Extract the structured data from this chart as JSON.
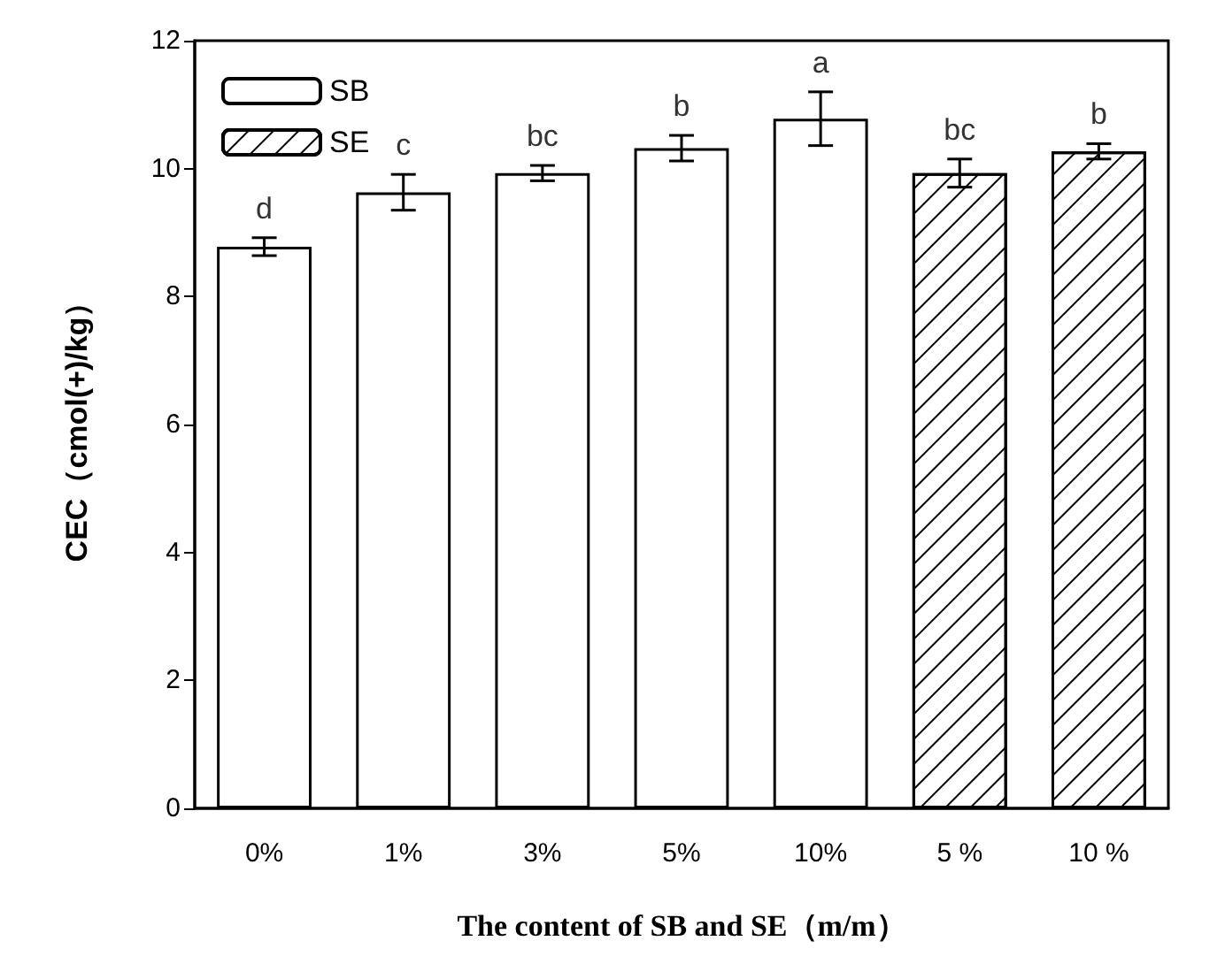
{
  "chart_data": {
    "type": "bar",
    "xlabel": "The content of SB and SE（m/m）",
    "ylabel": "CEC（cmol(+)/kg）",
    "categories": [
      "0%",
      "1%",
      "3%",
      "5%",
      "10%",
      "5 %",
      "10 %"
    ],
    "series": [
      {
        "name": "SB",
        "color": "#ffffff",
        "values": [
          8.78,
          9.63,
          9.93,
          10.32,
          10.78,
          null,
          null
        ],
        "errors": [
          0.14,
          0.28,
          0.12,
          0.2,
          0.42,
          null,
          null
        ]
      },
      {
        "name": "SE",
        "color": "#ffffff",
        "values": [
          null,
          null,
          null,
          null,
          null,
          9.93,
          10.27
        ],
        "errors": [
          null,
          null,
          null,
          null,
          null,
          0.22,
          0.12
        ]
      }
    ],
    "ylim": [
      0,
      12
    ],
    "yticks": [
      0,
      2,
      4,
      6,
      8,
      10,
      12
    ],
    "grid": false,
    "legend": "top left",
    "annotations": [
      {
        "text": "d",
        "x": "0%",
        "y": 8.78
      },
      {
        "text": "c",
        "x": "1%",
        "y": 9.63
      },
      {
        "text": "bc",
        "x": "3%",
        "y": 9.93
      },
      {
        "text": "b",
        "x": "5%",
        "y": 10.32
      },
      {
        "text": "a",
        "x": "10%",
        "y": 10.78
      },
      {
        "text": "bc",
        "x": "5 %",
        "y": 9.93
      },
      {
        "text": "b",
        "x": "10 %",
        "y": 10.27
      }
    ]
  }
}
